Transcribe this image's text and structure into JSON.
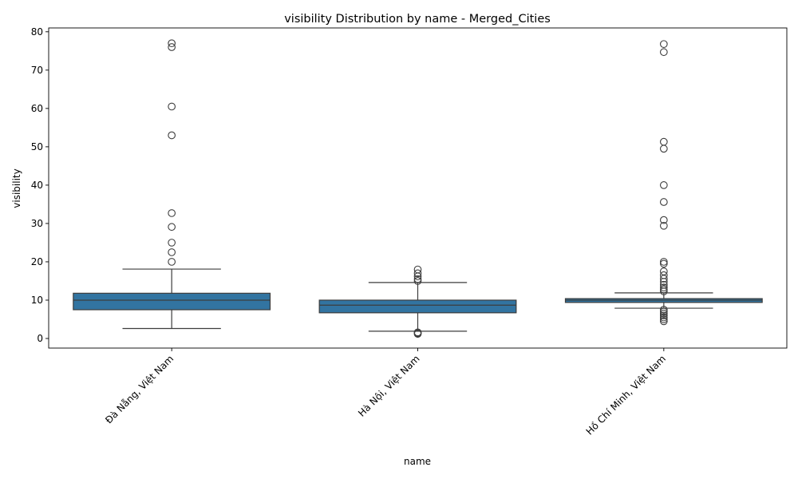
{
  "chart_data": {
    "type": "box",
    "title": "visibility Distribution by name - Merged_Cities",
    "xlabel": "name",
    "ylabel": "visibility",
    "ylim": [
      -2.5,
      81
    ],
    "yticks": [
      0,
      10,
      20,
      30,
      40,
      50,
      60,
      70,
      80
    ],
    "grid": false,
    "box_color": "#3274a1",
    "categories": [
      "Đà Nẵng, Việt Nam",
      "Hà Nội, Việt Nam",
      "Hồ Chí Minh, Việt Nam"
    ],
    "boxes": [
      {
        "category": "Đà Nẵng, Việt Nam",
        "whisker_low": 2.6,
        "q1": 7.5,
        "median": 10.0,
        "q3": 11.8,
        "whisker_high": 18.1,
        "outliers": [
          20.0,
          22.5,
          25.0,
          29.1,
          32.7,
          53.0,
          60.5,
          76.0,
          77.0
        ]
      },
      {
        "category": "Hà Nội, Việt Nam",
        "whisker_low": 1.9,
        "q1": 6.7,
        "median": 8.7,
        "q3": 10.0,
        "whisker_high": 14.6,
        "outliers": [
          1.2,
          1.4,
          1.6,
          15.0,
          15.5,
          16.2,
          17.0,
          18.0
        ]
      },
      {
        "category": "Hồ Chí Minh, Việt Nam",
        "whisker_low": 7.9,
        "q1": 9.4,
        "median": 10.0,
        "q3": 10.4,
        "whisker_high": 11.9,
        "outliers": [
          4.5,
          5.0,
          5.5,
          6.0,
          6.5,
          7.0,
          7.5,
          12.3,
          12.8,
          13.3,
          14.0,
          14.8,
          15.6,
          16.5,
          17.5,
          19.5,
          20.0,
          29.4,
          30.9,
          35.6,
          40.0,
          49.5,
          51.3,
          74.7,
          76.8
        ]
      }
    ]
  }
}
